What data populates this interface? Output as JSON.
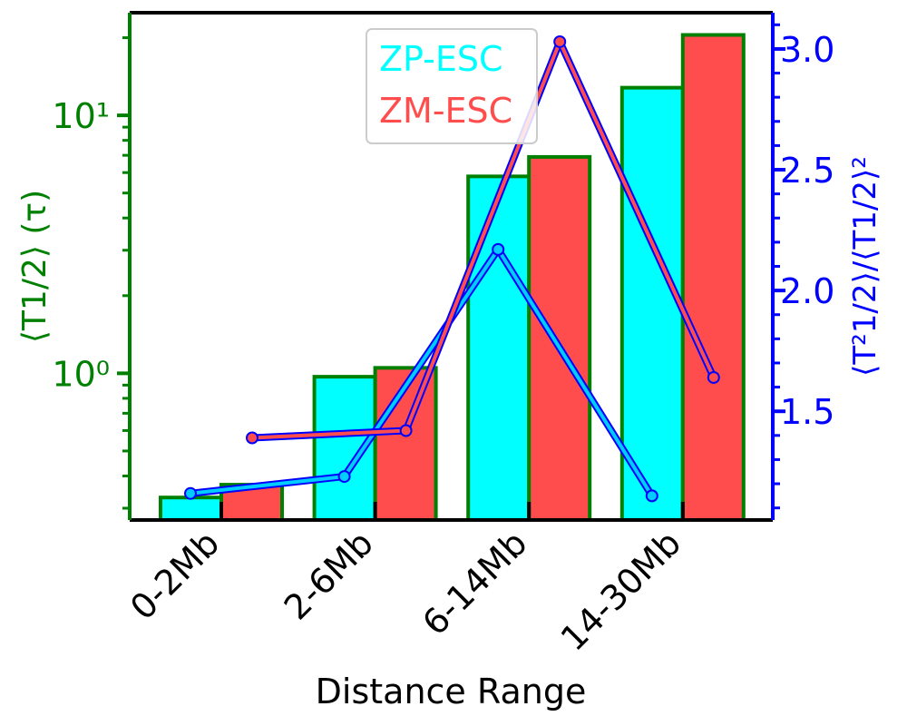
{
  "chart_data": {
    "type": "bar",
    "categories": [
      "0-2Mb",
      "2-6Mb",
      "6-14Mb",
      "14-30Mb"
    ],
    "xlabel": "Distance Range",
    "ylabel_left": "⟨T1/2⟩ (τ)",
    "ylabel_right": "⟨T²1/2⟩/⟨T1/2⟩²",
    "left_axis": {
      "scale": "log",
      "ylim": [
        0.27,
        25
      ],
      "ticks": [
        1,
        10
      ],
      "tick_labels": [
        "10⁰",
        "10¹"
      ]
    },
    "right_axis": {
      "scale": "linear",
      "ylim": [
        1.05,
        3.15
      ],
      "ticks": [
        1.5,
        2.0,
        2.5,
        3.0
      ],
      "tick_labels": [
        "1.5",
        "2.0",
        "2.5",
        "3.0"
      ]
    },
    "legend": {
      "placement": "top-center",
      "entries": [
        "ZP-ESC",
        "ZM-ESC"
      ]
    },
    "grid": false,
    "series": [
      {
        "name": "ZP-ESC",
        "kind": "bar",
        "axis": "left",
        "color": "#00ffff",
        "edge": "#008000",
        "values": [
          0.33,
          0.97,
          5.8,
          12.8
        ]
      },
      {
        "name": "ZM-ESC",
        "kind": "bar",
        "axis": "left",
        "color": "#ff4d4d",
        "edge": "#008000",
        "values": [
          0.37,
          1.05,
          6.9,
          20.5
        ]
      },
      {
        "name": "ZP-ESC",
        "kind": "line",
        "axis": "right",
        "color": "#00ccff",
        "outline": "#0000ff",
        "values": [
          1.16,
          1.23,
          2.17,
          1.15
        ]
      },
      {
        "name": "ZM-ESC",
        "kind": "line",
        "axis": "right",
        "color": "#ff4d4d",
        "outline": "#0000ff",
        "values": [
          1.39,
          1.42,
          3.03,
          1.64
        ]
      }
    ],
    "colors": {
      "left_axis": "#008000",
      "right_axis": "#0000ff",
      "frame": "#000000"
    }
  }
}
